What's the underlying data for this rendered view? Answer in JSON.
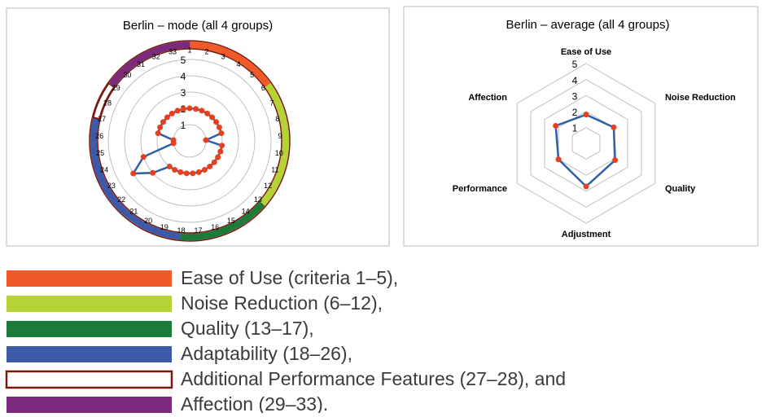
{
  "chart_data": [
    {
      "type": "radar",
      "title": "Berlin – mode (all 4 groups)",
      "categories": [
        "1",
        "2",
        "3",
        "4",
        "5",
        "6",
        "7",
        "8",
        "9",
        "10",
        "11",
        "12",
        "13",
        "14",
        "15",
        "16",
        "17",
        "18",
        "19",
        "20",
        "21",
        "22",
        "23",
        "24",
        "25",
        "26",
        "27",
        "28",
        "29",
        "30",
        "31",
        "32",
        "33"
      ],
      "values": [
        2,
        2,
        2,
        2,
        2,
        2,
        2,
        2,
        1,
        2,
        2,
        2,
        2,
        2,
        2,
        2,
        2,
        2,
        2,
        2,
        2,
        3,
        4,
        3,
        1,
        1,
        2,
        2,
        2,
        2,
        2,
        2,
        2
      ],
      "color": "#2e5fa8",
      "marker_color": "#e8401c",
      "rlim": [
        0,
        5
      ],
      "rticks": [
        1,
        2,
        3,
        4,
        5
      ],
      "grid": "circle",
      "groups": [
        {
          "name": "Ease of Use (criteria 1–5),",
          "color": "#f05a28",
          "range": [
            1,
            5
          ]
        },
        {
          "name": "Noise Reduction (6–12),",
          "color": "#b5d334",
          "range": [
            6,
            12
          ]
        },
        {
          "name": "Quality (13–17),",
          "color": "#1e7a3a",
          "range": [
            13,
            17
          ]
        },
        {
          "name": "Adaptability (18–26),",
          "color": "#3d5aa8",
          "range": [
            18,
            26
          ]
        },
        {
          "name": "Additional Performance Features (27–28), and",
          "color": "#ffffff",
          "outline": "#7a1a0f",
          "range": [
            27,
            28
          ]
        },
        {
          "name": "Affection (29–33).",
          "color": "#7b2a7e",
          "range": [
            29,
            33
          ]
        }
      ]
    },
    {
      "type": "radar",
      "title": "Berlin – average (all 4 groups)",
      "categories": [
        "Ease of Use",
        "Noise Reduction",
        "Quality",
        "Adjustment",
        "Performance",
        "Affection"
      ],
      "values": [
        1.8,
        2.0,
        2.1,
        2.7,
        2.0,
        2.2
      ],
      "color": "#2e5fa8",
      "marker_color": "#e8401c",
      "rlim": [
        0,
        5
      ],
      "rticks": [
        1,
        2,
        3,
        4,
        5
      ],
      "grid": "polygon"
    }
  ]
}
